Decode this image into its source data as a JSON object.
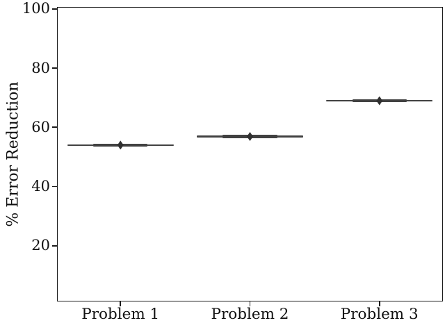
{
  "figure": {
    "background": "#ffffff",
    "spine_color": "#1a1a1a",
    "text_color": "#111111",
    "line_color": "#414141",
    "marker_color": "#303030"
  },
  "chart_data": {
    "type": "boxplot",
    "title": "",
    "xlabel": "",
    "ylabel": "% Error Reduction",
    "categories": [
      "Problem 1",
      "Problem 2",
      "Problem 3"
    ],
    "series": [
      {
        "name": "mean",
        "marker": "diamond",
        "values": [
          54.0,
          56.9,
          69.0
        ]
      }
    ],
    "spread": "negligible (intervals appear as flat horizontal lines)",
    "whisker_halfwidth_units": 0.41,
    "box_halfwidth_units": 0.21,
    "yticks": [
      20,
      40,
      60,
      80,
      100
    ],
    "ylim": [
      1.15,
      100.7
    ],
    "xlim": [
      0.51,
      3.49
    ],
    "grid": false,
    "legend": null
  }
}
